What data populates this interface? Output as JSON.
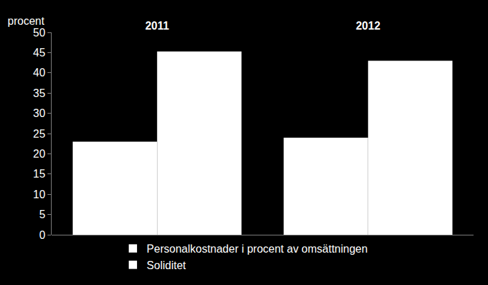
{
  "chart_data": {
    "type": "bar",
    "categories": [
      "2011",
      "2012"
    ],
    "series": [
      {
        "name": "Personalkostnader i procent av omsättningen",
        "color": "#ffffff",
        "values": [
          23,
          24
        ]
      },
      {
        "name": "Soliditet",
        "color": "#ffffff",
        "values": [
          45.3,
          43
        ]
      }
    ],
    "y_label": "procent",
    "ylim": [
      0,
      50
    ],
    "yticks": [
      0,
      5,
      10,
      15,
      20,
      25,
      30,
      35,
      40,
      45,
      50
    ],
    "grid": false,
    "legend": "bottom"
  }
}
